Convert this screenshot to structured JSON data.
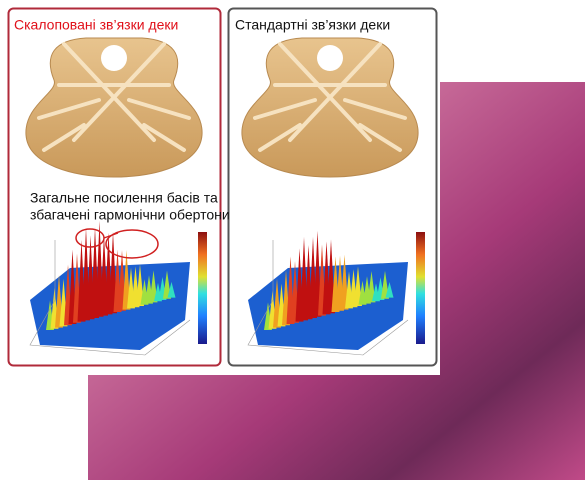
{
  "panels": [
    {
      "title": "Скалоповані зв’язки деки",
      "annotation": [
        "Загальне посилення басів та",
        "збагачені гармонічни обертони"
      ]
    },
    {
      "title": "Стандартні зв’язки деки"
    }
  ]
}
